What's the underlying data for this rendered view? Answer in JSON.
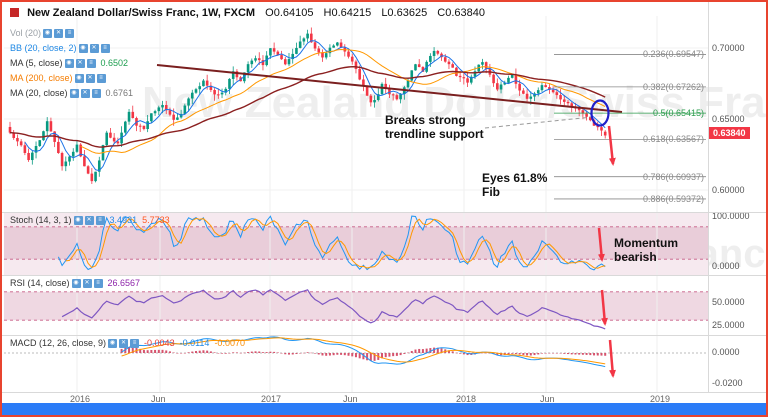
{
  "header": {
    "title": "New Zealand Dollar/Swiss Franc, 1W, FXCM",
    "ohlc": {
      "o": "O0.64105",
      "h": "H0.64215",
      "l": "L0.63625",
      "c": "C0.63840"
    }
  },
  "icons": {
    "eye": "◉",
    "close": "✕",
    "menu": "≡"
  },
  "indicators": [
    {
      "label": "Vol (20)",
      "color": "#9aa0a6"
    },
    {
      "label": "BB (20, close, 2)",
      "color": "#1e88e5"
    },
    {
      "label": "MA (5, close)",
      "color": "#333333",
      "value": "0.6502",
      "value_color": "#1d9e4f"
    },
    {
      "label": "MA (200, close)",
      "color": "#f57c00"
    },
    {
      "label": "MA (20, close)",
      "color": "#333333",
      "value": "0.6761",
      "value_color": "#777777"
    }
  ],
  "pane_headers": [
    {
      "label": "Stoch (14, 3, 1)",
      "color": "#333333",
      "values": [
        {
          "text": "3.4931",
          "color": "#1e88e5"
        },
        {
          "text": "5.7733",
          "color": "#ff5722"
        }
      ]
    },
    {
      "label": "RSI (14, close)",
      "color": "#333333",
      "values": [
        {
          "text": "26.6567",
          "color": "#8e24aa"
        }
      ]
    },
    {
      "label": "MACD (12, 26, close, 9)",
      "color": "#333333",
      "values": [
        {
          "text": "-0.0043",
          "color": "#e53935"
        },
        {
          "text": "-0.0114",
          "color": "#1e88e5"
        },
        {
          "text": "-0.0070",
          "color": "#fb8c00"
        }
      ]
    }
  ],
  "axis": {
    "price": [
      "0.70000",
      "0.65000",
      "0.60000"
    ],
    "stoch": [
      "100.0000",
      "0.0000"
    ],
    "rsi": [
      "50.0000",
      "25.0000"
    ],
    "macd": [
      "0.0000",
      "-0.0200"
    ]
  },
  "price_tag": "0.63840",
  "annotations": {
    "breaks": [
      "Breaks strong",
      "trendline support"
    ],
    "eyes": [
      "Eyes 61.8%",
      "Fib"
    ],
    "momentum": [
      "Momentum",
      "bearish"
    ]
  },
  "x_axis": [
    "2016",
    "Jun",
    "2017",
    "Jun",
    "2018",
    "Jun",
    "2019"
  ],
  "watermark": "New Zealand Dollar/Swiss Franc",
  "chart_data": {
    "type": "candlestick",
    "title": "New Zealand Dollar/Swiss Franc, 1W, FXCM",
    "timeframe": "1W",
    "bars": 161,
    "noise": 0.0025,
    "ylim": [
      0.585,
      0.715
    ],
    "price_ticks": [
      0.7,
      0.65,
      0.6
    ],
    "x_tick_labels": [
      "2016",
      "Jun",
      "2017",
      "Jun",
      "2018",
      "Jun",
      "2019"
    ],
    "keypoints": [
      [
        0,
        0.64
      ],
      [
        3,
        0.632
      ],
      [
        5,
        0.622
      ],
      [
        8,
        0.636
      ],
      [
        10,
        0.648
      ],
      [
        12,
        0.634
      ],
      [
        14,
        0.618
      ],
      [
        16,
        0.624
      ],
      [
        18,
        0.632
      ],
      [
        20,
        0.616
      ],
      [
        22,
        0.605
      ],
      [
        24,
        0.622
      ],
      [
        26,
        0.64
      ],
      [
        29,
        0.633
      ],
      [
        32,
        0.654
      ],
      [
        34,
        0.646
      ],
      [
        36,
        0.643
      ],
      [
        38,
        0.654
      ],
      [
        41,
        0.66
      ],
      [
        44,
        0.65
      ],
      [
        46,
        0.654
      ],
      [
        49,
        0.668
      ],
      [
        52,
        0.676
      ],
      [
        55,
        0.667
      ],
      [
        58,
        0.67
      ],
      [
        60,
        0.684
      ],
      [
        62,
        0.677
      ],
      [
        64,
        0.688
      ],
      [
        66,
        0.694
      ],
      [
        68,
        0.688
      ],
      [
        70,
        0.699
      ],
      [
        72,
        0.694
      ],
      [
        74,
        0.688
      ],
      [
        76,
        0.695
      ],
      [
        78,
        0.704
      ],
      [
        80,
        0.71
      ],
      [
        82,
        0.7
      ],
      [
        84,
        0.694
      ],
      [
        86,
        0.699
      ],
      [
        88,
        0.705
      ],
      [
        90,
        0.697
      ],
      [
        93,
        0.686
      ],
      [
        95,
        0.672
      ],
      [
        97,
        0.661
      ],
      [
        99,
        0.668
      ],
      [
        100,
        0.674
      ],
      [
        102,
        0.668
      ],
      [
        104,
        0.664
      ],
      [
        106,
        0.672
      ],
      [
        109,
        0.689
      ],
      [
        111,
        0.684
      ],
      [
        114,
        0.699
      ],
      [
        116,
        0.694
      ],
      [
        118,
        0.689
      ],
      [
        120,
        0.681
      ],
      [
        123,
        0.676
      ],
      [
        125,
        0.684
      ],
      [
        127,
        0.69
      ],
      [
        129,
        0.68
      ],
      [
        131,
        0.671
      ],
      [
        133,
        0.676
      ],
      [
        135,
        0.681
      ],
      [
        137,
        0.671
      ],
      [
        139,
        0.664
      ],
      [
        141,
        0.668
      ],
      [
        143,
        0.673
      ],
      [
        146,
        0.668
      ],
      [
        148,
        0.664
      ],
      [
        150,
        0.661
      ],
      [
        152,
        0.657
      ],
      [
        154,
        0.654
      ],
      [
        156,
        0.649
      ],
      [
        158,
        0.644
      ],
      [
        160,
        0.6384
      ]
    ],
    "last": {
      "o": 0.64105,
      "h": 0.64215,
      "l": 0.63625,
      "c": 0.6384
    },
    "fib_levels": [
      {
        "label": "0.236(0.69547)",
        "ratio": 0.236,
        "price": 0.69547,
        "color": "#8a8a8a"
      },
      {
        "label": "0.382(0.67262)",
        "ratio": 0.382,
        "price": 0.67262,
        "color": "#8a8a8a"
      },
      {
        "label": "0.5(0.65415)",
        "ratio": 0.5,
        "price": 0.65415,
        "color": "#2e9e4f"
      },
      {
        "label": "0.618(0.63567)",
        "ratio": 0.618,
        "price": 0.63567,
        "color": "#8a8a8a"
      },
      {
        "label": "0.786(0.60937)",
        "ratio": 0.786,
        "price": 0.60937,
        "color": "#8a8a8a"
      },
      {
        "label": "0.886(0.59372)",
        "ratio": 0.886,
        "price": 0.59372,
        "color": "#8a8a8a"
      }
    ],
    "indicator_readings": {
      "stoch_k": 3.4931,
      "stoch_d": 5.7733,
      "rsi": 26.6567,
      "macd_hist": -0.0043,
      "macd": -0.0114,
      "macd_signal": -0.007
    },
    "stoch_range": [
      0,
      100
    ],
    "stoch_bands": [
      20,
      80
    ],
    "rsi_bands": [
      30,
      70
    ],
    "macd_ticks": [
      0,
      -0.02
    ],
    "colors": {
      "up": "#089981",
      "down": "#f23645",
      "ma_fast": "#1a73e8",
      "ma_mid": "#ff9800",
      "ma_slow": "#8b2020",
      "trendline": "#7a1f1f",
      "stoch_k": "#2196f3",
      "stoch_d": "#ff9800",
      "rsi": "#7e57c2",
      "macd_line": "#2196f3",
      "signal_line": "#ff9800",
      "hist": "#d6536d",
      "arrow": "#f23645",
      "circle": "#2020c8"
    }
  }
}
